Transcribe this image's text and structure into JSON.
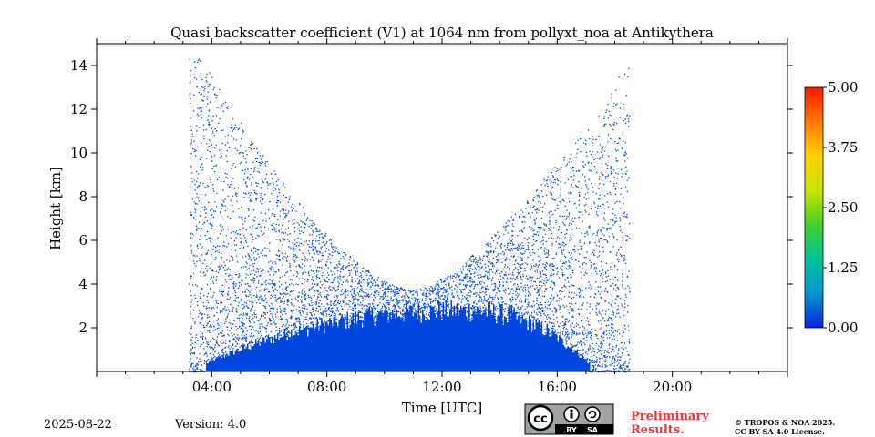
{
  "chart_data": {
    "type": "heatmap",
    "title": "Quasi backscatter coefficient (V1) at 1064 nm from pollyxt_noa at Antikythera",
    "xlabel": "Time [UTC]",
    "ylabel": "Height [km]",
    "xlim": [
      0,
      24
    ],
    "ylim": [
      0,
      15
    ],
    "x_ticks": [
      {
        "value": 4,
        "label": "04:00"
      },
      {
        "value": 8,
        "label": "08:00"
      },
      {
        "value": 12,
        "label": "12:00"
      },
      {
        "value": 16,
        "label": "16:00"
      },
      {
        "value": 20,
        "label": "20:00"
      }
    ],
    "y_ticks": [
      {
        "value": 2,
        "label": "2"
      },
      {
        "value": 4,
        "label": "4"
      },
      {
        "value": 6,
        "label": "6"
      },
      {
        "value": 8,
        "label": "8"
      },
      {
        "value": 10,
        "label": "10"
      },
      {
        "value": 12,
        "label": "12"
      },
      {
        "value": 14,
        "label": "14"
      }
    ],
    "colorbar": {
      "range": [
        0,
        5
      ],
      "ticks": [
        "0.00",
        "1.25",
        "2.50",
        "3.75",
        "5.00"
      ],
      "colors": [
        "#0c22d8",
        "#0096d2",
        "#00c49a",
        "#44d02a",
        "#c8e600",
        "#ffd200",
        "#ff7a00",
        "#ff1a00"
      ]
    },
    "signal_color": "#0047e0",
    "dense_layer": {
      "start_hour": 3.8,
      "end_hour": 17.1,
      "top_km_max": 2.6,
      "peak_hour": 12.8
    },
    "sparse_signal": {
      "start_hour": 3.2,
      "end_hour": 18.5,
      "max_height_km": 14.5
    }
  },
  "footer": {
    "date": "2025-08-22",
    "version": "Version: 4.0",
    "license_badge_text": "cc",
    "license_by": "BY",
    "license_sa": "SA",
    "preliminary_line1": "Preliminary",
    "preliminary_line2": "Results.",
    "copyright_line1": "© TROPOS & NOA 2025.",
    "copyright_line2": "CC BY SA 4.0 License."
  }
}
